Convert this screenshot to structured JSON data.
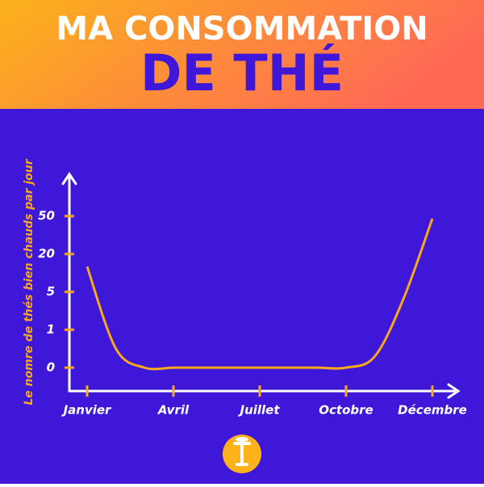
{
  "title_line1": "MA CONSOMMATION",
  "title_line2": "DE THÉ",
  "chart_data": {
    "type": "line",
    "y_label": "Le nomre de thés bien chauds par jour",
    "categories": [
      "Janvier",
      null,
      null,
      "Avril",
      null,
      null,
      "Juillet",
      null,
      null,
      "Octobre",
      null,
      null,
      "Décembre"
    ],
    "series": [
      {
        "name": null,
        "color": "#f5a81c",
        "values": [
          15,
          0.5,
          0,
          0,
          0,
          0,
          0,
          0,
          0,
          0,
          0.3,
          4.3,
          48
        ]
      }
    ],
    "yticks": [
      0,
      1,
      5,
      20,
      50
    ],
    "y_scale": "tick-spaced"
  }
}
